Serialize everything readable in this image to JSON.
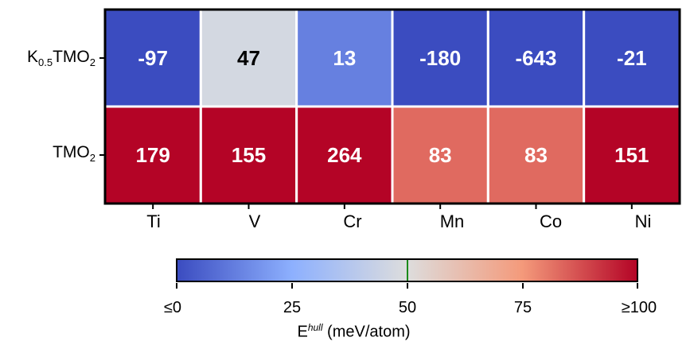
{
  "chart_data": {
    "type": "heatmap",
    "rows": [
      {
        "label_main": "K",
        "label_sub": "0.5",
        "label_tail": "TMO",
        "label_sub2": "2"
      },
      {
        "label_main": "TMO",
        "label_sub": "2"
      }
    ],
    "columns": [
      "Ti",
      "V",
      "Cr",
      "Mn",
      "Co",
      "Ni"
    ],
    "values": [
      [
        -97,
        47,
        13,
        -180,
        -643,
        -21
      ],
      [
        179,
        155,
        264,
        83,
        83,
        151
      ]
    ],
    "value_labels": [
      [
        "-97",
        "47",
        "13",
        "-180",
        "-643",
        "-21"
      ],
      [
        "179",
        "155",
        "264",
        "83",
        "83",
        "151"
      ]
    ],
    "color_range": [
      0,
      100
    ],
    "colormap": "coolwarm",
    "colors": {
      "low": "#3b4cc0",
      "mid": "#dddddd",
      "high": "#b40426"
    },
    "colorbar": {
      "ticks": [
        0,
        25,
        50,
        75,
        100
      ],
      "tick_labels": [
        "≤0",
        "25",
        "50",
        "75",
        "≥100"
      ],
      "marker_value": 50,
      "marker_color": "#1a8a1a",
      "label_main": "E",
      "label_sup": "hull",
      "label_tail": " (meV/atom)"
    }
  }
}
